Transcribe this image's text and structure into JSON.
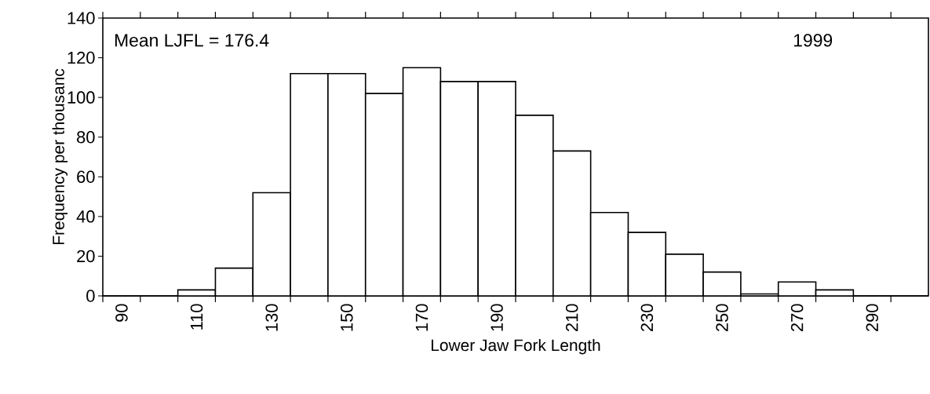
{
  "chart_data": {
    "type": "histogram",
    "xlabel": "Lower Jaw Fork Length",
    "ylabel": "Frequency per thousanc",
    "bins": [
      85,
      95,
      105,
      115,
      125,
      135,
      145,
      155,
      165,
      175,
      185,
      195,
      205,
      215,
      225,
      235,
      245,
      255,
      265,
      275,
      285,
      295,
      305
    ],
    "values": [
      0,
      0,
      3,
      14,
      52,
      112,
      112,
      102,
      115,
      108,
      108,
      91,
      73,
      42,
      32,
      21,
      12,
      1,
      7,
      3,
      0,
      0
    ],
    "color": "#ffffff",
    "xlim": [
      85,
      305
    ],
    "ylim": [
      0,
      140
    ],
    "xticks": [
      {
        "value": 85,
        "label": null
      },
      90,
      {
        "value": 95,
        "label": null
      },
      {
        "value": 105,
        "label": null
      },
      110,
      {
        "value": 115,
        "label": null
      },
      {
        "value": 125,
        "label": null
      },
      130,
      {
        "value": 135,
        "label": null
      },
      {
        "value": 145,
        "label": null
      },
      150,
      {
        "value": 155,
        "label": null
      },
      {
        "value": 165,
        "label": null
      },
      170,
      {
        "value": 175,
        "label": null
      },
      {
        "value": 185,
        "label": null
      },
      190,
      {
        "value": 195,
        "label": null
      },
      {
        "value": 205,
        "label": null
      },
      210,
      {
        "value": 215,
        "label": null
      },
      {
        "value": 225,
        "label": null
      },
      230,
      {
        "value": 235,
        "label": null
      },
      {
        "value": 245,
        "label": null
      },
      250,
      {
        "value": 255,
        "label": null
      },
      {
        "value": 265,
        "label": null
      },
      270,
      {
        "value": 275,
        "label": null
      },
      {
        "value": 285,
        "label": null
      },
      290,
      {
        "value": 295,
        "label": null
      }
    ],
    "yticks": [
      0,
      20,
      40,
      60,
      80,
      100,
      120,
      140
    ],
    "annotations": [
      "Mean LJFL = 176.4",
      "1999"
    ],
    "grid": false
  }
}
